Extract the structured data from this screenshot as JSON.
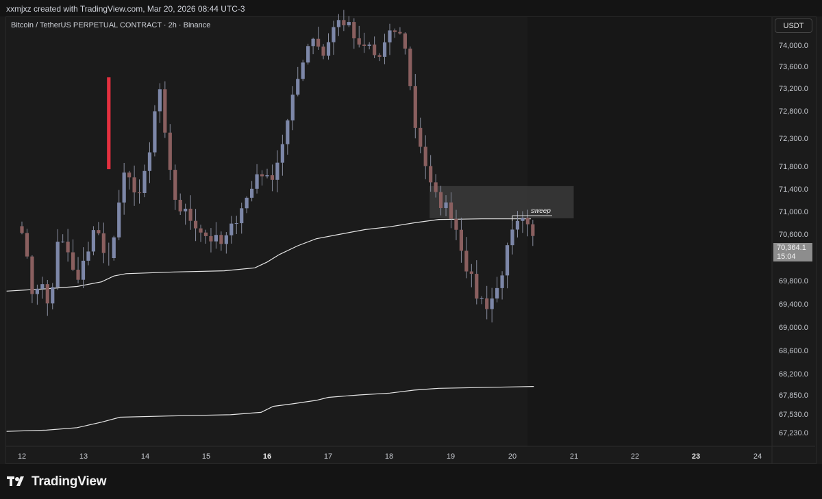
{
  "credit": "xxmjxz created with TradingView.com, Mar 20, 2026 08:44 UTC-3",
  "symbol": "Bitcoin / TetherUS PERPETUAL CONTRACT · 2h · Binance",
  "currency": "USDT",
  "brand": "TradingView",
  "colors": {
    "background": "#1b1b1b",
    "up_candle": "#7d87a8",
    "down_candle": "#8a5f5f",
    "highlight_candle": "#e4303f",
    "wick": "#8a8fa0",
    "vwap_line": "#e6e6e6",
    "zone_fill": "#3a3a3a"
  },
  "last_price": {
    "value": "70,364.1",
    "countdown": "15:04"
  },
  "chart_data": {
    "type": "candlestick",
    "interval": "2h",
    "price_axis": {
      "ticks": [
        "74,000.0",
        "73,600.0",
        "73,200.0",
        "72,800.0",
        "72,300.0",
        "71,800.0",
        "71,400.0",
        "71,000.0",
        "70,600.0",
        "69,800.0",
        "69,400.0",
        "69,000.0",
        "68,600.0",
        "68,200.0",
        "67,850.0",
        "67,530.0",
        "67,230.0"
      ]
    },
    "time_axis": {
      "ticks": [
        {
          "label": "12",
          "bold": false
        },
        {
          "label": "13",
          "bold": false
        },
        {
          "label": "14",
          "bold": false
        },
        {
          "label": "15",
          "bold": false
        },
        {
          "label": "16",
          "bold": true
        },
        {
          "label": "17",
          "bold": false
        },
        {
          "label": "18",
          "bold": false
        },
        {
          "label": "19",
          "bold": false
        },
        {
          "label": "20",
          "bold": false
        },
        {
          "label": "21",
          "bold": false
        },
        {
          "label": "22",
          "bold": false
        },
        {
          "label": "23",
          "bold": true
        },
        {
          "label": "24",
          "bold": false
        }
      ]
    },
    "annotations": [
      {
        "text": "sweep",
        "type": "label"
      },
      {
        "type": "rectangle",
        "top": 71450,
        "bottom": 70880,
        "from_day": 18.65,
        "to_day": 21.0
      }
    ],
    "start_day": 12.0,
    "end_day": 20.35,
    "price_path": [
      70750,
      69600,
      69800,
      69300,
      70500,
      70300,
      69700,
      70200,
      70800,
      70200,
      70400,
      71600,
      71500,
      71300,
      72000,
      73350,
      71800,
      71100,
      70950,
      70800,
      70600,
      70500,
      70400,
      70700,
      71100,
      71300,
      71800,
      71500,
      71900,
      72500,
      73200,
      73900,
      74200,
      73800,
      74300,
      74500,
      74300,
      73900,
      74000,
      73700,
      74100,
      74300,
      74000,
      72600,
      72000,
      71300,
      71150,
      71000,
      70500,
      69900,
      69500,
      69400,
      69600,
      70200,
      70700,
      70800,
      70500
    ]
  }
}
